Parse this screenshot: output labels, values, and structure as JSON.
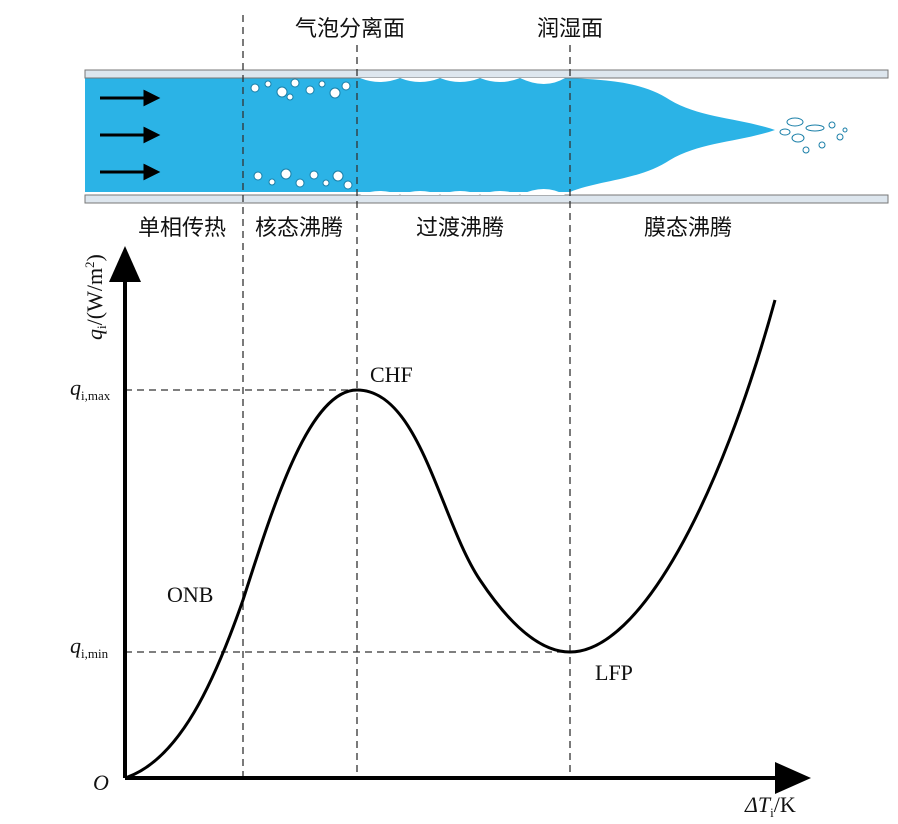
{
  "top_labels": {
    "separation": "气泡分离面",
    "wetting": "润湿面"
  },
  "regions": [
    "单相传热",
    "核态沸腾",
    "过渡沸腾",
    "膜态沸腾"
  ],
  "y_axis": {
    "symbol": "q",
    "sub": "i",
    "unit": "/(W/m",
    "sup": "2",
    "close": ")"
  },
  "x_axis": {
    "symbol": "ΔT",
    "sub": "i",
    "unit": "/K"
  },
  "origin": "O",
  "q_max": {
    "symbol": "q",
    "sub": "i,max"
  },
  "q_min": {
    "symbol": "q",
    "sub": "i,min"
  },
  "points": {
    "chf": "CHF",
    "onb": "ONB",
    "lfp": "LFP"
  }
}
